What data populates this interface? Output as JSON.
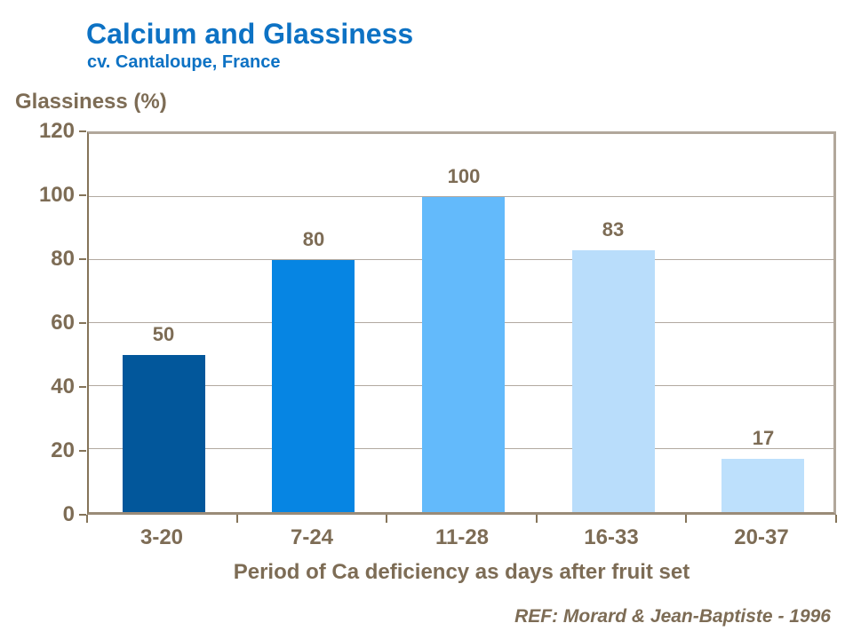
{
  "slide": {
    "title": "Calcium and Glassiness",
    "subtitle": "cv. Cantaloupe, France",
    "reference": "REF: Morard & Jean-Baptiste - 1996"
  },
  "colors": {
    "title_blue": "#0D72C4",
    "text_brown": "#7D6C55",
    "frame_taupe": "#B1A79B",
    "axis_brown": "#857459",
    "gridline_gray": "#B2A9A0"
  },
  "chart_data": {
    "type": "bar",
    "title": "Calcium and Glassiness",
    "subtitle": "cv. Cantaloupe, France",
    "categories": [
      "3-20",
      "7-24",
      "11-28",
      "16-33",
      "20-37"
    ],
    "values": [
      50,
      80,
      100,
      83,
      17
    ],
    "bar_colors": [
      "#02579B",
      "#0685E3",
      "#63BAFB",
      "#B9DDFB",
      "#BDE0FC"
    ],
    "xlabel": "Period of Ca deficiency as days after fruit set",
    "ylabel": "Glassiness (%)",
    "ylim": [
      0,
      120
    ],
    "yticks": [
      0,
      20,
      40,
      60,
      80,
      100,
      120
    ],
    "grid": true,
    "legend": false
  }
}
